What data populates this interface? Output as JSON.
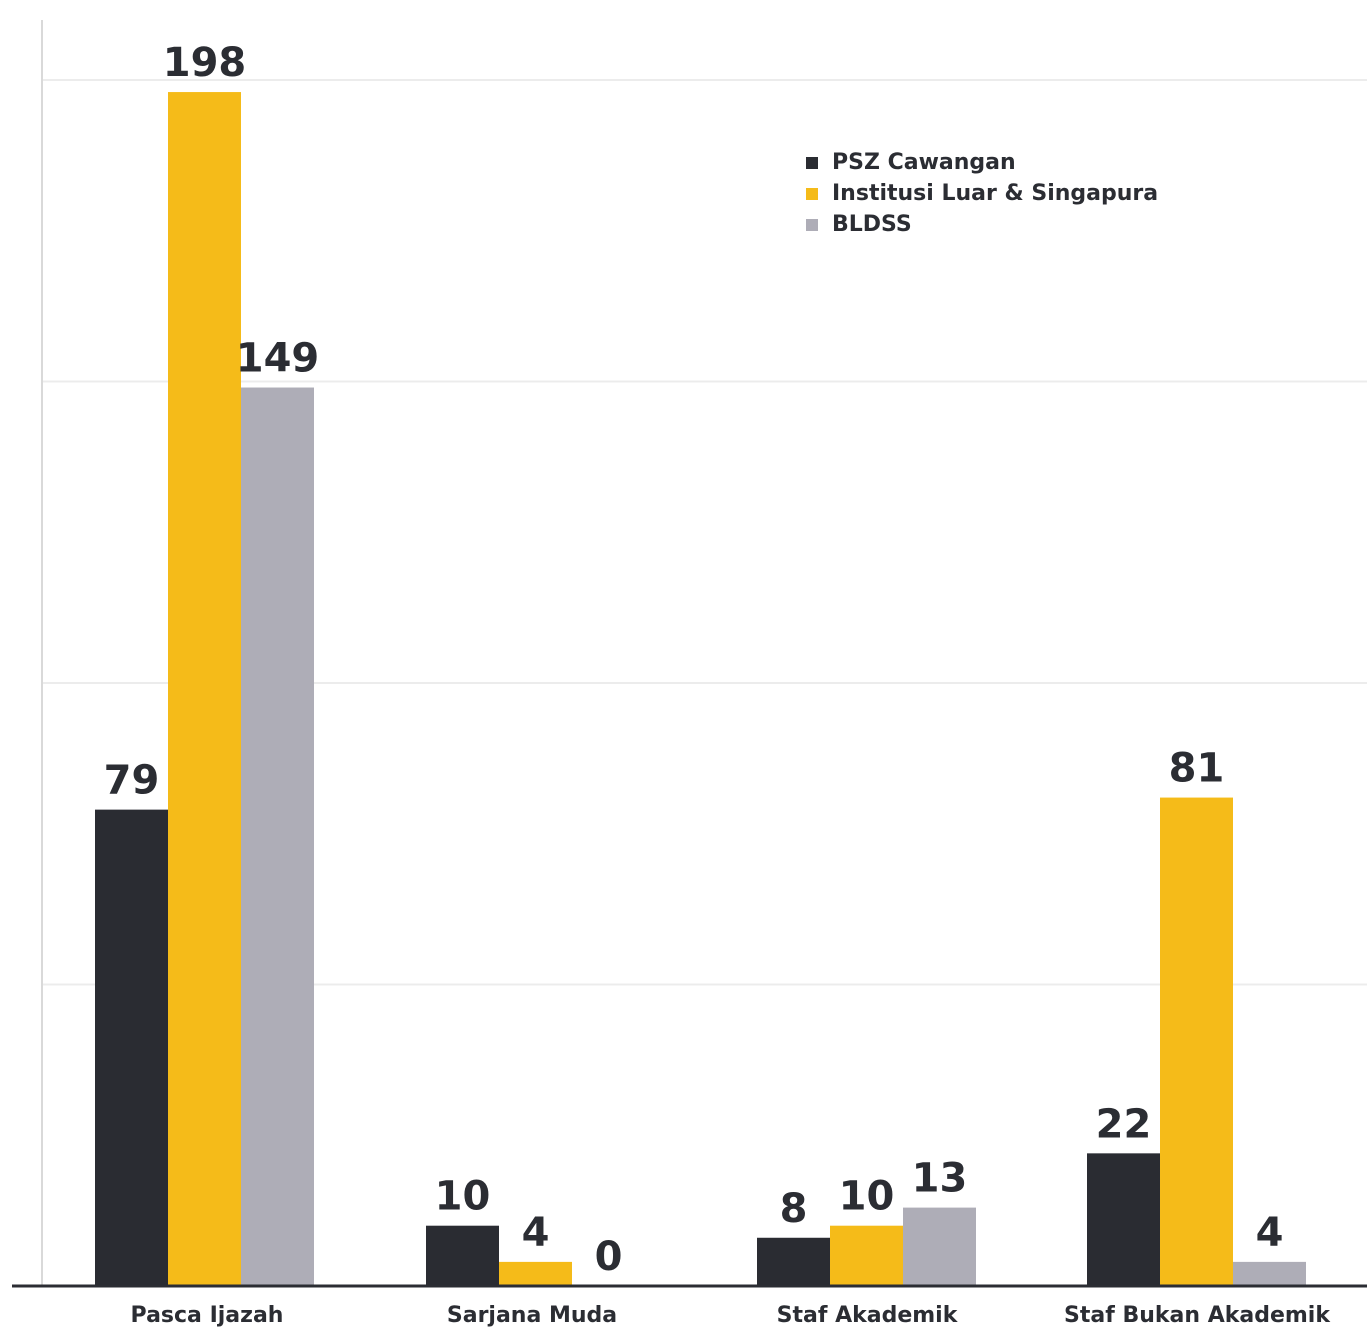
{
  "chart_data": {
    "type": "bar",
    "categories": [
      "Pasca Ijazah",
      "Sarjana Muda",
      "Staf Akademik",
      "Staf Bukan Akademik"
    ],
    "series": [
      {
        "name": "PSZ Cawangan",
        "color": "#2a2c32",
        "values": [
          79,
          10,
          8,
          22
        ]
      },
      {
        "name": "Institusi Luar & Singapura",
        "color": "#f5bb19",
        "values": [
          198,
          4,
          10,
          81
        ]
      },
      {
        "name": "BLDSS",
        "color": "#aeadb7",
        "values": [
          149,
          0,
          13,
          4
        ]
      }
    ],
    "ylim": [
      0,
      200
    ],
    "grid": true,
    "legend_position": "top-right"
  }
}
